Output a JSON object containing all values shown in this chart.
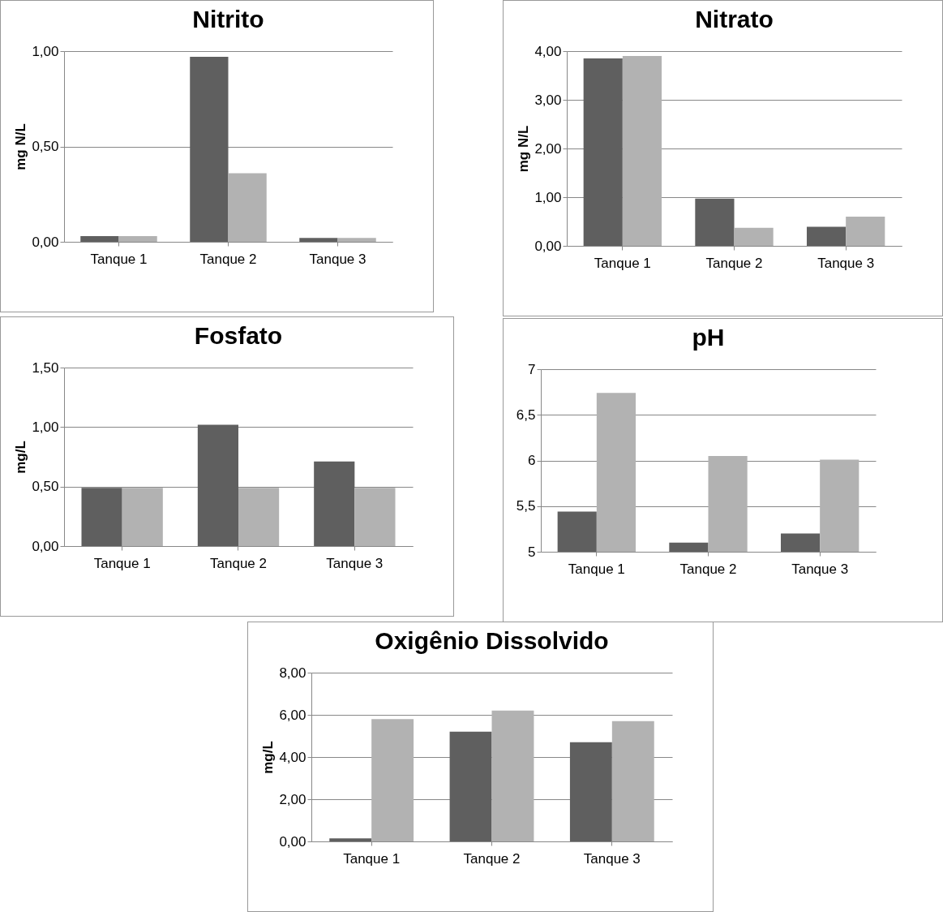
{
  "chart_data": [
    {
      "type": "bar",
      "title": "Nitrito",
      "ylabel": "mg N/L",
      "categories": [
        "Tanque 1",
        "Tanque 2",
        "Tanque 3"
      ],
      "series": [
        {
          "color": "#5f5f5f",
          "values": [
            0.03,
            0.97,
            0.02
          ]
        },
        {
          "color": "#b2b2b2",
          "values": [
            0.03,
            0.36,
            0.02
          ]
        }
      ],
      "ylim": [
        0,
        1
      ],
      "yticks": [
        {
          "value": 0,
          "label": "0,00"
        },
        {
          "value": 0.5,
          "label": "0,50"
        },
        {
          "value": 1,
          "label": "1,00"
        }
      ],
      "grid": "y"
    },
    {
      "type": "bar",
      "title": "Nitrato",
      "ylabel": "mg N/L",
      "categories": [
        "Tanque 1",
        "Tanque 2",
        "Tanque 3"
      ],
      "series": [
        {
          "color": "#5f5f5f",
          "values": [
            3.85,
            0.97,
            0.39
          ]
        },
        {
          "color": "#b2b2b2",
          "values": [
            3.9,
            0.37,
            0.6
          ]
        }
      ],
      "ylim": [
        0,
        4
      ],
      "yticks": [
        {
          "value": 0,
          "label": "0,00"
        },
        {
          "value": 1,
          "label": "1,00"
        },
        {
          "value": 2,
          "label": "2,00"
        },
        {
          "value": 3,
          "label": "3,00"
        },
        {
          "value": 4,
          "label": "4,00"
        }
      ],
      "grid": "y"
    },
    {
      "type": "bar",
      "title": "Fosfato",
      "ylabel": "mg/L",
      "categories": [
        "Tanque 1",
        "Tanque 2",
        "Tanque 3"
      ],
      "series": [
        {
          "color": "#5f5f5f",
          "values": [
            0.49,
            1.02,
            0.71
          ]
        },
        {
          "color": "#b2b2b2",
          "values": [
            0.49,
            0.49,
            0.49
          ]
        }
      ],
      "ylim": [
        0,
        1.5
      ],
      "yticks": [
        {
          "value": 0,
          "label": "0,00"
        },
        {
          "value": 0.5,
          "label": "0,50"
        },
        {
          "value": 1,
          "label": "1,00"
        },
        {
          "value": 1.5,
          "label": "1,50"
        }
      ],
      "grid": "y"
    },
    {
      "type": "bar",
      "title": "pH",
      "categories": [
        "Tanque 1",
        "Tanque 2",
        "Tanque 3"
      ],
      "series": [
        {
          "color": "#5f5f5f",
          "values": [
            5.44,
            5.1,
            5.2
          ]
        },
        {
          "color": "#b2b2b2",
          "values": [
            6.74,
            6.05,
            6.01
          ]
        }
      ],
      "ylim": [
        5,
        7
      ],
      "yticks": [
        5,
        {
          "value": 5.5,
          "label": "5,5"
        },
        6,
        {
          "value": 6.5,
          "label": "6,5"
        },
        7
      ],
      "grid": "y"
    },
    {
      "type": "bar",
      "title": "Oxigênio Dissolvido",
      "ylabel": "mg/L",
      "categories": [
        "Tanque 1",
        "Tanque 2",
        "Tanque 3"
      ],
      "series": [
        {
          "color": "#5f5f5f",
          "values": [
            0.14,
            5.2,
            4.7
          ]
        },
        {
          "color": "#b2b2b2",
          "values": [
            5.8,
            6.2,
            5.7
          ]
        }
      ],
      "ylim": [
        0,
        8
      ],
      "yticks": [
        {
          "value": 0,
          "label": "0,00"
        },
        {
          "value": 2,
          "label": "2,00"
        },
        {
          "value": 4,
          "label": "4,00"
        },
        {
          "value": 6,
          "label": "6,00"
        },
        {
          "value": 8,
          "label": "8,00"
        }
      ],
      "grid": "y"
    }
  ]
}
